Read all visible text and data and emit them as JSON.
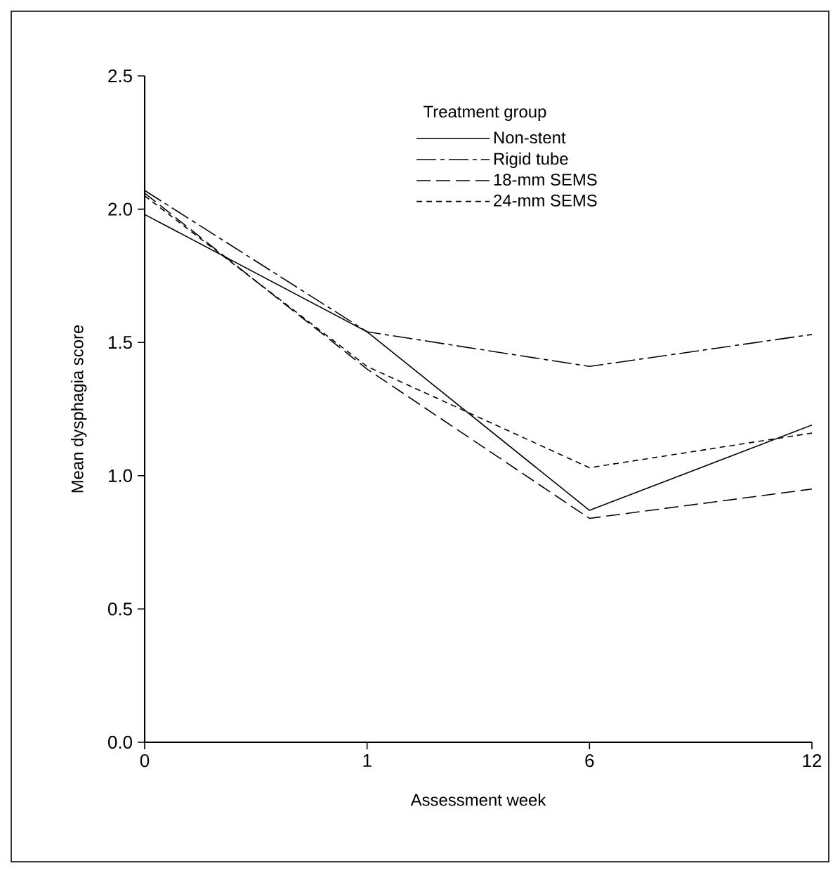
{
  "chart_data": {
    "type": "line",
    "xlabel": "Assessment week",
    "ylabel": "Mean dysphagia score",
    "legend_title": "Treatment group",
    "categories": [
      "0",
      "1",
      "6",
      "12"
    ],
    "series": [
      {
        "name": "Non-stent",
        "color": "#000000",
        "line_style": "solid",
        "values": [
          1.98,
          1.54,
          0.87,
          1.19
        ]
      },
      {
        "name": "Rigid tube",
        "color": "#000000",
        "line_style": "dashdot",
        "values": [
          2.07,
          1.54,
          1.41,
          1.53
        ]
      },
      {
        "name": "18-mm SEMS",
        "color": "#000000",
        "line_style": "dashed",
        "values": [
          2.06,
          1.4,
          0.84,
          0.95
        ]
      },
      {
        "name": "24-mm SEMS",
        "color": "#000000",
        "line_style": "dotted",
        "values": [
          2.05,
          1.41,
          1.03,
          1.16
        ]
      }
    ],
    "ylim": [
      0,
      2.5
    ],
    "yticks": [
      {
        "value": 0,
        "label": "0.0"
      },
      {
        "value": 0.5,
        "label": "0.5"
      },
      {
        "value": 1,
        "label": "1.0"
      },
      {
        "value": 1.5,
        "label": "1.5"
      },
      {
        "value": 2,
        "label": "2.0"
      },
      {
        "value": 2.5,
        "label": "2.5"
      }
    ],
    "legend": "top right",
    "grid": false,
    "marker": "none"
  }
}
